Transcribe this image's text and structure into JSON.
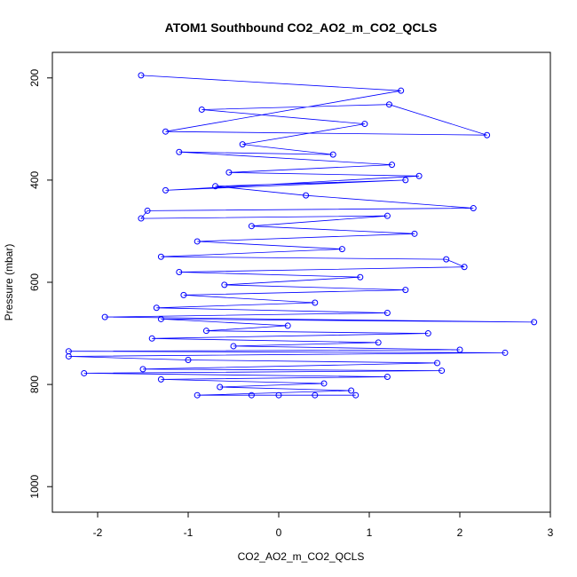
{
  "chart_data": {
    "type": "scatter",
    "title": "ATOM1 Southbound CO2_AO2_m_CO2_QCLS",
    "xlabel": "CO2_AO2_m_CO2_QCLS",
    "ylabel": "Pressure (mbar)",
    "xlim": [
      -2.5,
      3.0
    ],
    "ylim": [
      1050,
      150
    ],
    "x_ticks": [
      -2,
      -1,
      0,
      1,
      2,
      3
    ],
    "y_ticks": [
      200,
      400,
      600,
      800,
      1000
    ],
    "x_tick_labels": [
      "-2",
      "-1",
      "0",
      "1",
      "2",
      "3"
    ],
    "y_tick_labels": [
      "200",
      "400",
      "600",
      "800",
      "1000"
    ],
    "y_reversed": true,
    "grid": false,
    "legend": "none",
    "point_style": "open-circle-with-lines",
    "color": "#0000ff",
    "series": [
      {
        "points": [
          {
            "x": -1.52,
            "y": 195
          },
          {
            "x": 1.35,
            "y": 225
          },
          {
            "x": -1.25,
            "y": 305
          },
          {
            "x": 2.3,
            "y": 312
          },
          {
            "x": 1.22,
            "y": 252
          },
          {
            "x": -0.85,
            "y": 262
          },
          {
            "x": 0.95,
            "y": 290
          },
          {
            "x": -0.4,
            "y": 330
          },
          {
            "x": 0.6,
            "y": 350
          },
          {
            "x": -1.1,
            "y": 345
          },
          {
            "x": 1.25,
            "y": 370
          },
          {
            "x": -0.55,
            "y": 385
          },
          {
            "x": 1.55,
            "y": 392
          },
          {
            "x": -1.25,
            "y": 420
          },
          {
            "x": 1.4,
            "y": 400
          },
          {
            "x": -0.7,
            "y": 412
          },
          {
            "x": 0.3,
            "y": 430
          },
          {
            "x": 2.15,
            "y": 455
          },
          {
            "x": -1.45,
            "y": 460
          },
          {
            "x": -1.52,
            "y": 475
          },
          {
            "x": 1.2,
            "y": 470
          },
          {
            "x": -0.3,
            "y": 490
          },
          {
            "x": 1.5,
            "y": 505
          },
          {
            "x": -0.9,
            "y": 520
          },
          {
            "x": 0.7,
            "y": 535
          },
          {
            "x": -1.3,
            "y": 550
          },
          {
            "x": 1.85,
            "y": 555
          },
          {
            "x": 2.05,
            "y": 570
          },
          {
            "x": -1.1,
            "y": 580
          },
          {
            "x": 0.9,
            "y": 590
          },
          {
            "x": -0.6,
            "y": 605
          },
          {
            "x": 1.4,
            "y": 615
          },
          {
            "x": -1.05,
            "y": 625
          },
          {
            "x": 0.4,
            "y": 640
          },
          {
            "x": -1.35,
            "y": 650
          },
          {
            "x": 1.2,
            "y": 660
          },
          {
            "x": -1.92,
            "y": 668
          },
          {
            "x": 2.82,
            "y": 678
          },
          {
            "x": -1.3,
            "y": 672
          },
          {
            "x": 0.1,
            "y": 685
          },
          {
            "x": -0.8,
            "y": 695
          },
          {
            "x": 1.65,
            "y": 700
          },
          {
            "x": -1.4,
            "y": 710
          },
          {
            "x": 1.1,
            "y": 718
          },
          {
            "x": -0.5,
            "y": 725
          },
          {
            "x": 2.0,
            "y": 732
          },
          {
            "x": -2.32,
            "y": 735
          },
          {
            "x": 2.5,
            "y": 738
          },
          {
            "x": -2.32,
            "y": 745
          },
          {
            "x": -1.0,
            "y": 752
          },
          {
            "x": 1.75,
            "y": 758
          },
          {
            "x": -1.5,
            "y": 770
          },
          {
            "x": 1.8,
            "y": 773
          },
          {
            "x": -2.15,
            "y": 778
          },
          {
            "x": 1.2,
            "y": 785
          },
          {
            "x": -1.3,
            "y": 790
          },
          {
            "x": 0.5,
            "y": 798
          },
          {
            "x": -0.65,
            "y": 805
          },
          {
            "x": 0.8,
            "y": 812
          },
          {
            "x": -0.9,
            "y": 821
          },
          {
            "x": 0.85,
            "y": 821
          },
          {
            "x": -0.3,
            "y": 821
          },
          {
            "x": 0.4,
            "y": 821
          },
          {
            "x": 0.0,
            "y": 821
          }
        ]
      }
    ]
  }
}
